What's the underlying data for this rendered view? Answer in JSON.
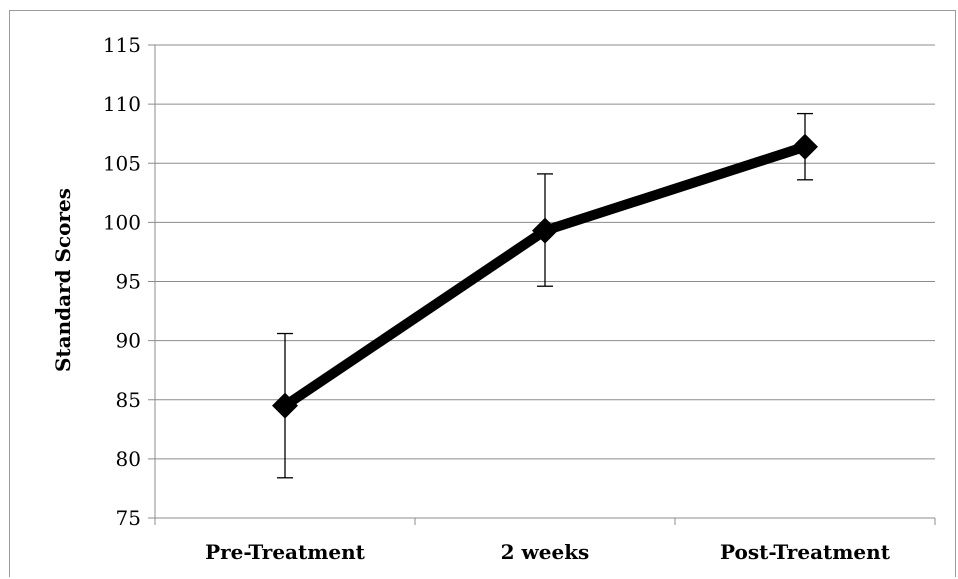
{
  "chart_data": {
    "type": "line",
    "title": "",
    "xlabel": "",
    "ylabel": "Standard Scores",
    "categories": [
      "Pre-Treatment",
      "2 weeks",
      "Post-Treatment"
    ],
    "series": [
      {
        "values": [
          84.5,
          99.3,
          106.4
        ],
        "error_upper": [
          90.6,
          104.1,
          109.2
        ],
        "error_lower": [
          78.4,
          94.6,
          103.6
        ],
        "color": "#000000",
        "marker": "diamond"
      }
    ],
    "ylim": [
      75,
      115
    ],
    "yticks": [
      75,
      80,
      85,
      90,
      95,
      100,
      105,
      110,
      115
    ],
    "grid": true,
    "legend": "none"
  }
}
